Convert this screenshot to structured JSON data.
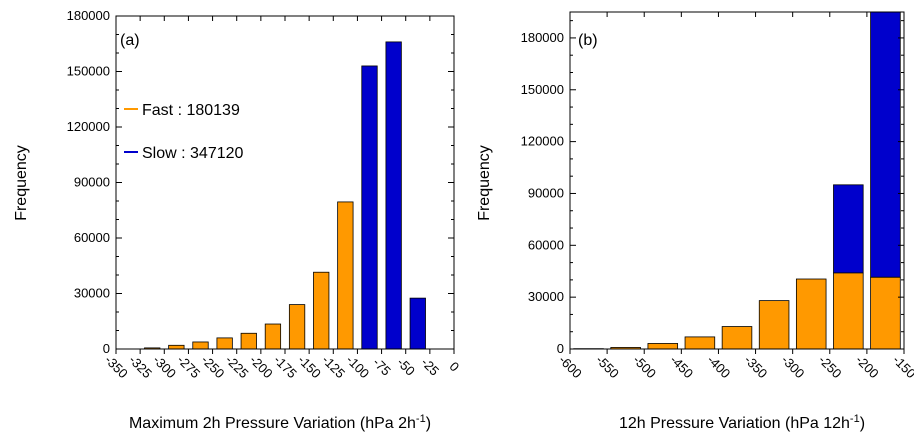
{
  "chart_data": [
    {
      "panel": "(a)",
      "type": "bar",
      "stacked": false,
      "xlabel": "Maximum 2h Pressure Variation (hPa 2h",
      "xlabel_sup": "-1",
      "xlabel_end": ")",
      "ylabel": "Frequency",
      "xlim": [
        -350,
        0
      ],
      "ylim": [
        0,
        180000
      ],
      "xticks": [
        -350,
        -325,
        -300,
        -275,
        -250,
        -225,
        -200,
        -175,
        -150,
        -125,
        -100,
        -75,
        -50,
        -25,
        0
      ],
      "yticks": [
        0,
        30000,
        60000,
        90000,
        120000,
        150000,
        180000
      ],
      "legend_position": "upper-left",
      "legend": [
        {
          "label": "Fast : 180139",
          "color": "#ff9900"
        },
        {
          "label": "Slow : 347120",
          "color": "#0000cc"
        }
      ],
      "bars": [
        {
          "x": -312.5,
          "value": 600,
          "series": "Fast"
        },
        {
          "x": -287.5,
          "value": 2000,
          "series": "Fast"
        },
        {
          "x": -262.5,
          "value": 3800,
          "series": "Fast"
        },
        {
          "x": -237.5,
          "value": 6000,
          "series": "Fast"
        },
        {
          "x": -212.5,
          "value": 8500,
          "series": "Fast"
        },
        {
          "x": -187.5,
          "value": 13500,
          "series": "Fast"
        },
        {
          "x": -162.5,
          "value": 24000,
          "series": "Fast"
        },
        {
          "x": -137.5,
          "value": 41500,
          "series": "Fast"
        },
        {
          "x": -112.5,
          "value": 79500,
          "series": "Fast"
        },
        {
          "x": -87.5,
          "value": 153000,
          "series": "Slow"
        },
        {
          "x": -62.5,
          "value": 166000,
          "series": "Slow"
        },
        {
          "x": -37.5,
          "value": 27500,
          "series": "Slow"
        }
      ],
      "colors": {
        "Fast": "#ff9900",
        "Slow": "#0000cc"
      }
    },
    {
      "panel": "(b)",
      "type": "bar",
      "stacked": true,
      "xlabel": "12h Pressure Variation (hPa 12h",
      "xlabel_sup": "-1",
      "xlabel_end": ")",
      "ylabel": "Frequency",
      "xlim": [
        -600,
        -150
      ],
      "ylim": [
        0,
        195000
      ],
      "xticks": [
        -600,
        -550,
        -500,
        -450,
        -400,
        -350,
        -300,
        -250,
        -200,
        -150
      ],
      "yticks": [
        0,
        30000,
        60000,
        90000,
        120000,
        150000,
        180000
      ],
      "series": [
        {
          "name": "Fast",
          "color": "#ff9900",
          "x": [
            -575,
            -525,
            -475,
            -425,
            -375,
            -325,
            -275,
            -225,
            -175
          ],
          "values": [
            200,
            900,
            3200,
            7000,
            13000,
            28000,
            40500,
            44000,
            41500
          ]
        },
        {
          "name": "Slow",
          "color": "#0000cc",
          "x": [
            -575,
            -525,
            -475,
            -425,
            -375,
            -325,
            -275,
            -225,
            -175
          ],
          "values": [
            0,
            0,
            0,
            0,
            0,
            0,
            0,
            51000,
            153500
          ]
        }
      ]
    }
  ]
}
